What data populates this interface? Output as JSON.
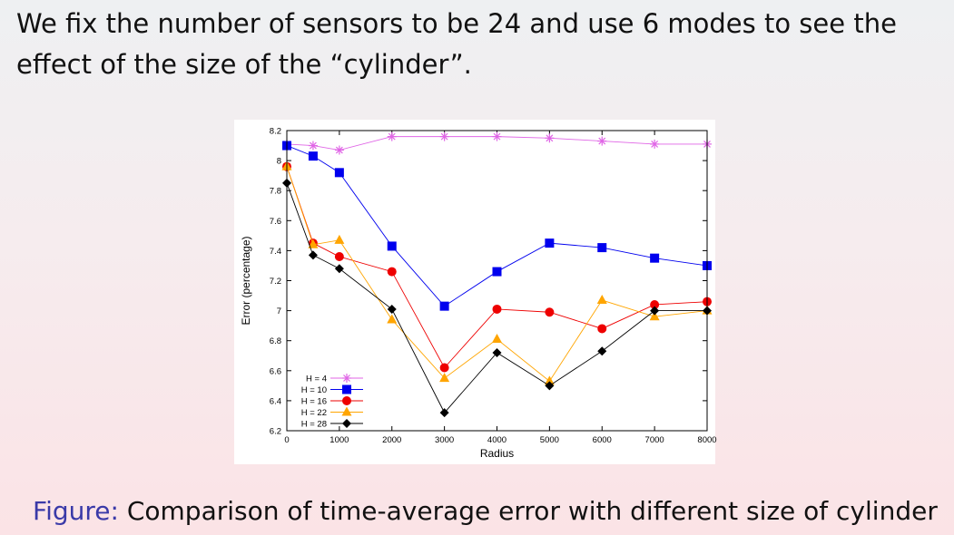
{
  "slide": {
    "intro_text": "We fix the number of sensors to be 24 and use 6 modes to see the effect of the size of the “cylinder”.",
    "caption_label": "Figure:",
    "caption_text": "Comparison of time-average error with different size of cylinder"
  },
  "chart_data": {
    "type": "line",
    "title": "",
    "xlabel": "Radius",
    "ylabel": "Error (percentage)",
    "xlim": [
      0,
      8000
    ],
    "ylim": [
      6.2,
      8.2
    ],
    "x_ticks": [
      0,
      1000,
      2000,
      3000,
      4000,
      5000,
      6000,
      7000,
      8000
    ],
    "y_ticks": [
      6.2,
      6.4,
      6.6,
      6.8,
      7,
      7.2,
      7.4,
      7.6,
      7.8,
      8,
      8.2
    ],
    "grid": false,
    "legend_position": "bottom-left",
    "x": [
      0,
      500,
      1000,
      2000,
      3000,
      4000,
      5000,
      6000,
      7000,
      8000
    ],
    "series": [
      {
        "name": "H = 4",
        "color": "#e066e6",
        "marker": "star",
        "values": [
          8.11,
          8.1,
          8.07,
          8.16,
          8.16,
          8.16,
          8.15,
          8.13,
          8.11,
          8.11
        ]
      },
      {
        "name": "H = 10",
        "color": "#0000ee",
        "marker": "square",
        "values": [
          8.1,
          8.03,
          7.92,
          7.43,
          7.03,
          7.26,
          7.45,
          7.42,
          7.35,
          7.3
        ]
      },
      {
        "name": "H = 16",
        "color": "#ee0000",
        "marker": "circle",
        "values": [
          7.96,
          7.45,
          7.36,
          7.26,
          6.62,
          7.01,
          6.99,
          6.88,
          7.04,
          7.06
        ]
      },
      {
        "name": "H = 22",
        "color": "#ffa500",
        "marker": "triangle",
        "values": [
          7.96,
          7.44,
          7.47,
          6.94,
          6.55,
          6.81,
          6.53,
          7.07,
          6.96,
          7.0
        ]
      },
      {
        "name": "H = 28",
        "color": "#000000",
        "marker": "diamond",
        "values": [
          7.85,
          7.37,
          7.28,
          7.01,
          6.32,
          6.72,
          6.5,
          6.73,
          7.0,
          7.0
        ]
      }
    ]
  }
}
